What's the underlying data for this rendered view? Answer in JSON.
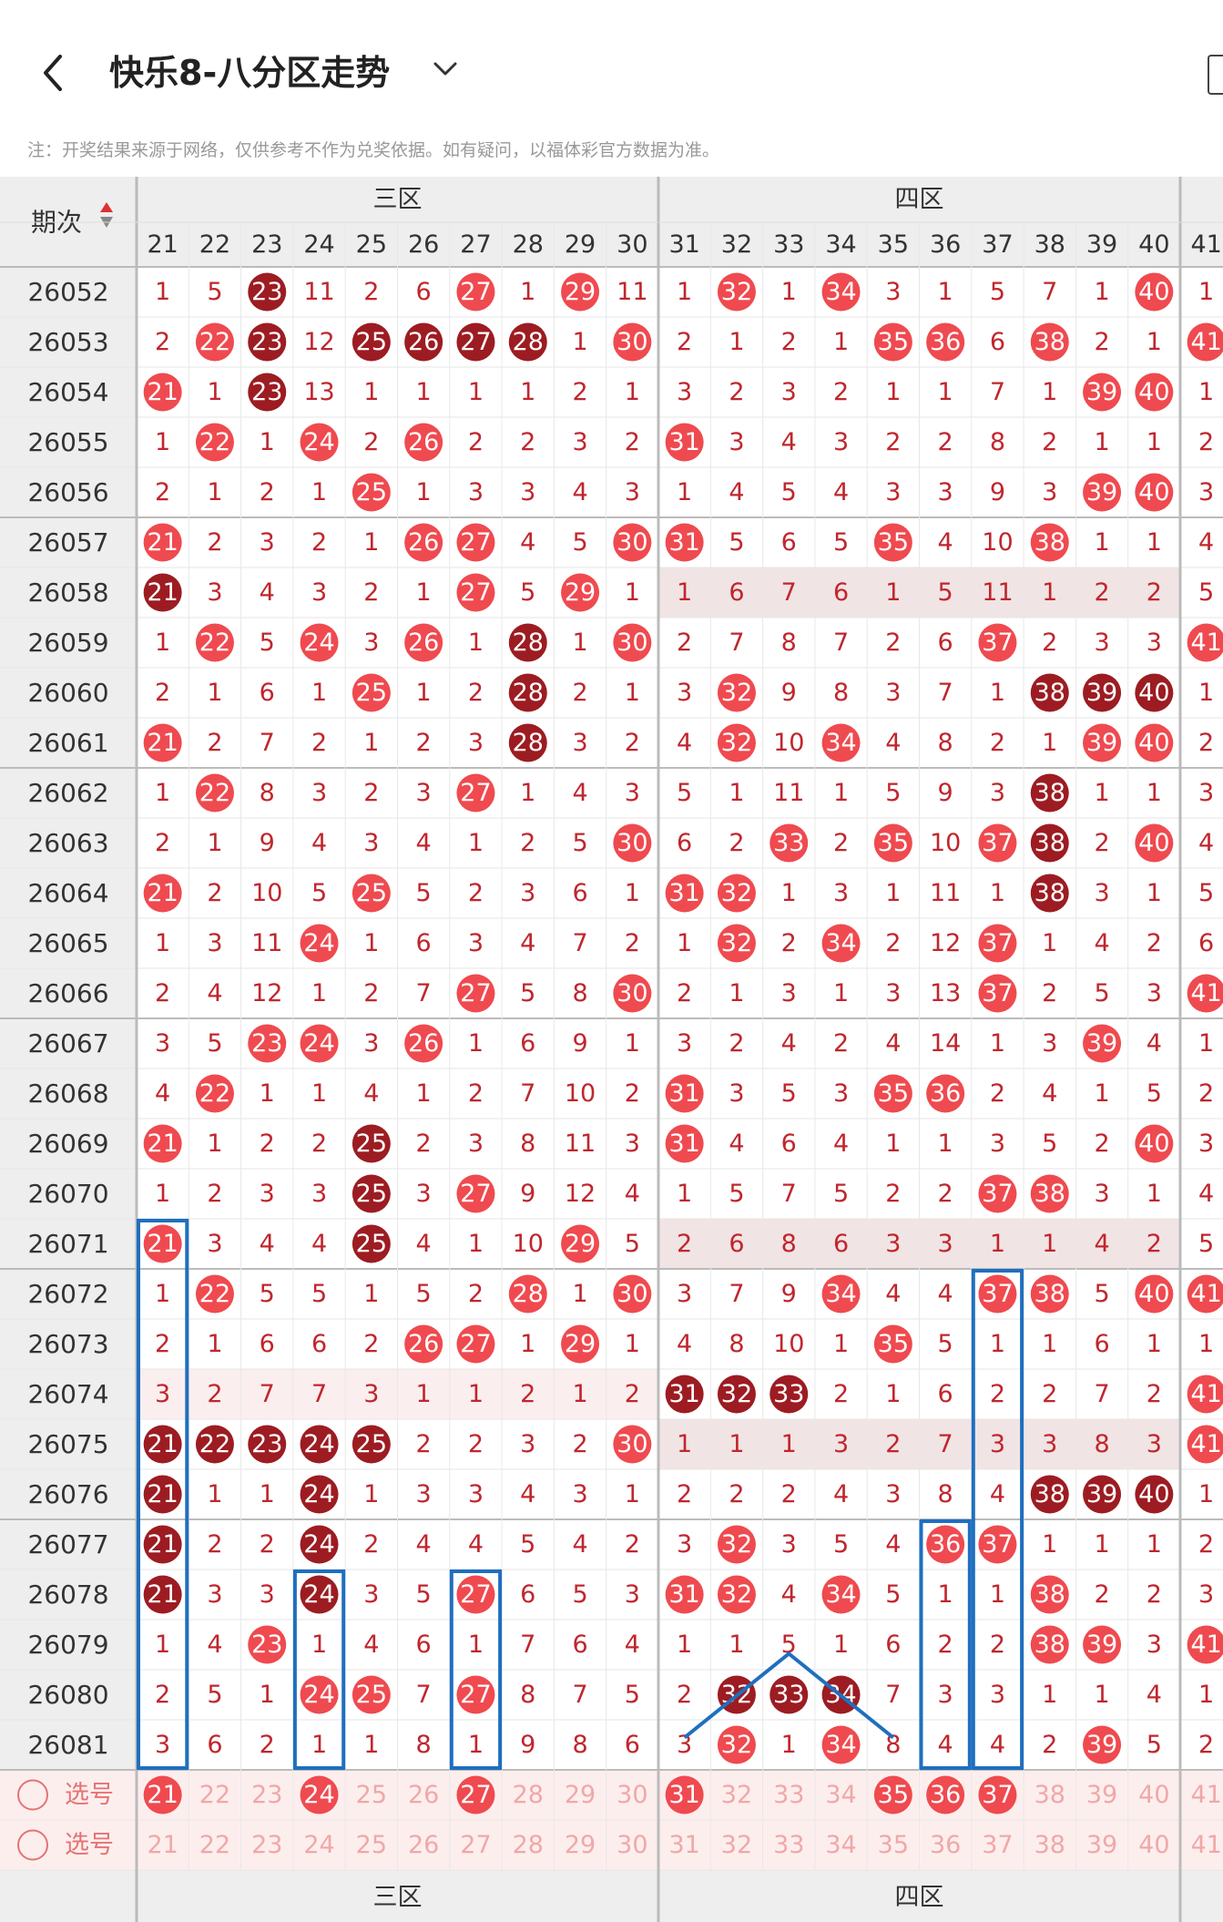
{
  "header": {
    "title": "快乐8-八分区走势",
    "note": "注：开奖结果来源于网络，仅供参考不作为兑奖依据。如有疑问，以福体彩官方数据为准。"
  },
  "grid": {
    "corner_label": "期次",
    "zones": [
      "三区",
      "四区"
    ],
    "columns": [
      21,
      22,
      23,
      24,
      25,
      26,
      27,
      28,
      29,
      30,
      31,
      32,
      33,
      34,
      35,
      36,
      37,
      38,
      39,
      40,
      41
    ],
    "rows": [
      {
        "issue": "26052",
        "cells": [
          "1",
          "5",
          "23*",
          "11",
          "2",
          "6",
          "27",
          "1",
          "29",
          "11",
          "1",
          "32",
          "1",
          "34",
          "3",
          "1",
          "5",
          "7",
          "1",
          "40",
          "1"
        ]
      },
      {
        "issue": "26053",
        "cells": [
          "2",
          "22",
          "23*",
          "12",
          "25*",
          "26*",
          "27*",
          "28*",
          "1",
          "30",
          "2",
          "1",
          "2",
          "1",
          "35",
          "36",
          "6",
          "38",
          "2",
          "1",
          "41"
        ]
      },
      {
        "issue": "26054",
        "cells": [
          "21",
          "1",
          "23*",
          "13",
          "1",
          "1",
          "1",
          "1",
          "2",
          "1",
          "3",
          "2",
          "3",
          "2",
          "1",
          "1",
          "7",
          "1",
          "39",
          "40",
          "1"
        ]
      },
      {
        "issue": "26055",
        "cells": [
          "1",
          "22",
          "1",
          "24",
          "2",
          "26",
          "2",
          "2",
          "3",
          "2",
          "31",
          "3",
          "4",
          "3",
          "2",
          "2",
          "8",
          "2",
          "1",
          "1",
          "2"
        ]
      },
      {
        "issue": "26056",
        "cells": [
          "2",
          "1",
          "2",
          "1",
          "25",
          "1",
          "3",
          "3",
          "4",
          "3",
          "1",
          "4",
          "5",
          "4",
          "3",
          "3",
          "9",
          "3",
          "39",
          "40",
          "3"
        ]
      },
      {
        "issue": "26057",
        "cells": [
          "21",
          "2",
          "3",
          "2",
          "1",
          "26",
          "27",
          "4",
          "5",
          "30",
          "31",
          "5",
          "6",
          "5",
          "35",
          "4",
          "10",
          "38",
          "1",
          "1",
          "4"
        ]
      },
      {
        "issue": "26058",
        "cells": [
          "21*",
          "3",
          "4",
          "3",
          "2",
          "1",
          "27",
          "5",
          "29",
          "1",
          "1",
          "6",
          "7",
          "6",
          "1",
          "5",
          "11",
          "1",
          "2",
          "2",
          "5"
        ]
      },
      {
        "issue": "26059",
        "cells": [
          "1",
          "22",
          "5",
          "24",
          "3",
          "26",
          "1",
          "28*",
          "1",
          "30",
          "2",
          "7",
          "8",
          "7",
          "2",
          "6",
          "37",
          "2",
          "3",
          "3",
          "41"
        ]
      },
      {
        "issue": "26060",
        "cells": [
          "2",
          "1",
          "6",
          "1",
          "25",
          "1",
          "2",
          "28*",
          "2",
          "1",
          "3",
          "32",
          "9",
          "8",
          "3",
          "7",
          "1",
          "38*",
          "39*",
          "40*",
          "1"
        ]
      },
      {
        "issue": "26061",
        "cells": [
          "21",
          "2",
          "7",
          "2",
          "1",
          "2",
          "3",
          "28*",
          "3",
          "2",
          "4",
          "32",
          "10",
          "34",
          "4",
          "8",
          "2",
          "1",
          "39",
          "40",
          "2"
        ]
      },
      {
        "issue": "26062",
        "cells": [
          "1",
          "22",
          "8",
          "3",
          "2",
          "3",
          "27",
          "1",
          "4",
          "3",
          "5",
          "1",
          "11",
          "1",
          "5",
          "9",
          "3",
          "38*",
          "1",
          "1",
          "3"
        ]
      },
      {
        "issue": "26063",
        "cells": [
          "2",
          "1",
          "9",
          "4",
          "3",
          "4",
          "1",
          "2",
          "5",
          "30",
          "6",
          "2",
          "33",
          "2",
          "35",
          "10",
          "37",
          "38*",
          "2",
          "40",
          "4"
        ]
      },
      {
        "issue": "26064",
        "cells": [
          "21",
          "2",
          "10",
          "5",
          "25",
          "5",
          "2",
          "3",
          "6",
          "1",
          "31",
          "32",
          "1",
          "3",
          "1",
          "11",
          "1",
          "38*",
          "3",
          "1",
          "5"
        ]
      },
      {
        "issue": "26065",
        "cells": [
          "1",
          "3",
          "11",
          "24",
          "1",
          "6",
          "3",
          "4",
          "7",
          "2",
          "1",
          "32",
          "2",
          "34",
          "2",
          "12",
          "37",
          "1",
          "4",
          "2",
          "6"
        ]
      },
      {
        "issue": "26066",
        "cells": [
          "2",
          "4",
          "12",
          "1",
          "2",
          "7",
          "27",
          "5",
          "8",
          "30",
          "2",
          "1",
          "3",
          "1",
          "3",
          "13",
          "37",
          "2",
          "5",
          "3",
          "41"
        ]
      },
      {
        "issue": "26067",
        "cells": [
          "3",
          "5",
          "23",
          "24",
          "3",
          "26",
          "1",
          "6",
          "9",
          "1",
          "3",
          "2",
          "4",
          "2",
          "4",
          "14",
          "1",
          "3",
          "39",
          "4",
          "1"
        ]
      },
      {
        "issue": "26068",
        "cells": [
          "4",
          "22",
          "1",
          "1",
          "4",
          "1",
          "2",
          "7",
          "10",
          "2",
          "31",
          "3",
          "5",
          "3",
          "35",
          "36",
          "2",
          "4",
          "1",
          "5",
          "2"
        ]
      },
      {
        "issue": "26069",
        "cells": [
          "21",
          "1",
          "2",
          "2",
          "25*",
          "2",
          "3",
          "8",
          "11",
          "3",
          "31",
          "4",
          "6",
          "4",
          "1",
          "1",
          "3",
          "5",
          "2",
          "40",
          "3"
        ]
      },
      {
        "issue": "26070",
        "cells": [
          "1",
          "2",
          "3",
          "3",
          "25*",
          "3",
          "27",
          "9",
          "12",
          "4",
          "1",
          "5",
          "7",
          "5",
          "2",
          "2",
          "37",
          "38",
          "3",
          "1",
          "4"
        ]
      },
      {
        "issue": "26071",
        "cells": [
          "21",
          "3",
          "4",
          "4",
          "25*",
          "4",
          "1",
          "10",
          "29",
          "5",
          "2",
          "6",
          "8",
          "6",
          "3",
          "3",
          "1",
          "1",
          "4",
          "2",
          "5"
        ]
      },
      {
        "issue": "26072",
        "cells": [
          "1",
          "22",
          "5",
          "5",
          "1",
          "5",
          "2",
          "28",
          "1",
          "30",
          "3",
          "7",
          "9",
          "34",
          "4",
          "4",
          "37",
          "38",
          "5",
          "40",
          "41"
        ]
      },
      {
        "issue": "26073",
        "cells": [
          "2",
          "1",
          "6",
          "6",
          "2",
          "26",
          "27",
          "1",
          "29",
          "1",
          "4",
          "8",
          "10",
          "1",
          "35",
          "5",
          "1",
          "1",
          "6",
          "1",
          "1"
        ]
      },
      {
        "issue": "26074",
        "cells": [
          "3",
          "2",
          "7",
          "7",
          "3",
          "1",
          "1",
          "2",
          "1",
          "2",
          "31*",
          "32*",
          "33*",
          "2",
          "1",
          "6",
          "2",
          "2",
          "7",
          "2",
          "41"
        ]
      },
      {
        "issue": "26075",
        "cells": [
          "21*",
          "22*",
          "23*",
          "24*",
          "25*",
          "2",
          "2",
          "3",
          "2",
          "30",
          "1",
          "1",
          "1",
          "3",
          "2",
          "7",
          "3",
          "3",
          "8",
          "3",
          "41"
        ]
      },
      {
        "issue": "26076",
        "cells": [
          "21*",
          "1",
          "1",
          "24*",
          "1",
          "3",
          "3",
          "4",
          "3",
          "1",
          "2",
          "2",
          "2",
          "4",
          "3",
          "8",
          "4",
          "38*",
          "39*",
          "40*",
          "1"
        ]
      },
      {
        "issue": "26077",
        "cells": [
          "21*",
          "2",
          "2",
          "24*",
          "2",
          "4",
          "4",
          "5",
          "4",
          "2",
          "3",
          "32",
          "3",
          "5",
          "4",
          "36",
          "37",
          "1",
          "1",
          "1",
          "2"
        ]
      },
      {
        "issue": "26078",
        "cells": [
          "21*",
          "3",
          "3",
          "24*",
          "3",
          "5",
          "27",
          "6",
          "5",
          "3",
          "31",
          "32",
          "4",
          "34",
          "5",
          "1",
          "1",
          "38",
          "2",
          "2",
          "3"
        ]
      },
      {
        "issue": "26079",
        "cells": [
          "1",
          "4",
          "23",
          "1",
          "4",
          "6",
          "1",
          "7",
          "6",
          "4",
          "1",
          "1",
          "5",
          "1",
          "6",
          "2",
          "2",
          "38",
          "39",
          "3",
          "41"
        ]
      },
      {
        "issue": "26080",
        "cells": [
          "2",
          "5",
          "1",
          "24",
          "25",
          "7",
          "27",
          "8",
          "7",
          "5",
          "2",
          "32*",
          "33*",
          "34*",
          "7",
          "3",
          "3",
          "1",
          "1",
          "4",
          "1"
        ]
      },
      {
        "issue": "26081",
        "cells": [
          "3",
          "6",
          "2",
          "1",
          "1",
          "8",
          "1",
          "9",
          "8",
          "6",
          "3",
          "32",
          "1",
          "34",
          "8",
          "4",
          "4",
          "2",
          "39",
          "5",
          "2"
        ]
      }
    ],
    "select_label": "选号",
    "select_rows": [
      {
        "label": "选号",
        "selected": [
          "21",
          "24",
          "27",
          "31",
          "35",
          "36",
          "37"
        ]
      },
      {
        "label": "选号",
        "selected": []
      }
    ],
    "colors": {
      "hit": "#ef4a4f",
      "hit_dark": "#9c1c22",
      "miss_text": "#c0262d",
      "box": "#1f6fbf",
      "header_bg": "#eeeeee",
      "shade": "#f1e4e4"
    }
  }
}
